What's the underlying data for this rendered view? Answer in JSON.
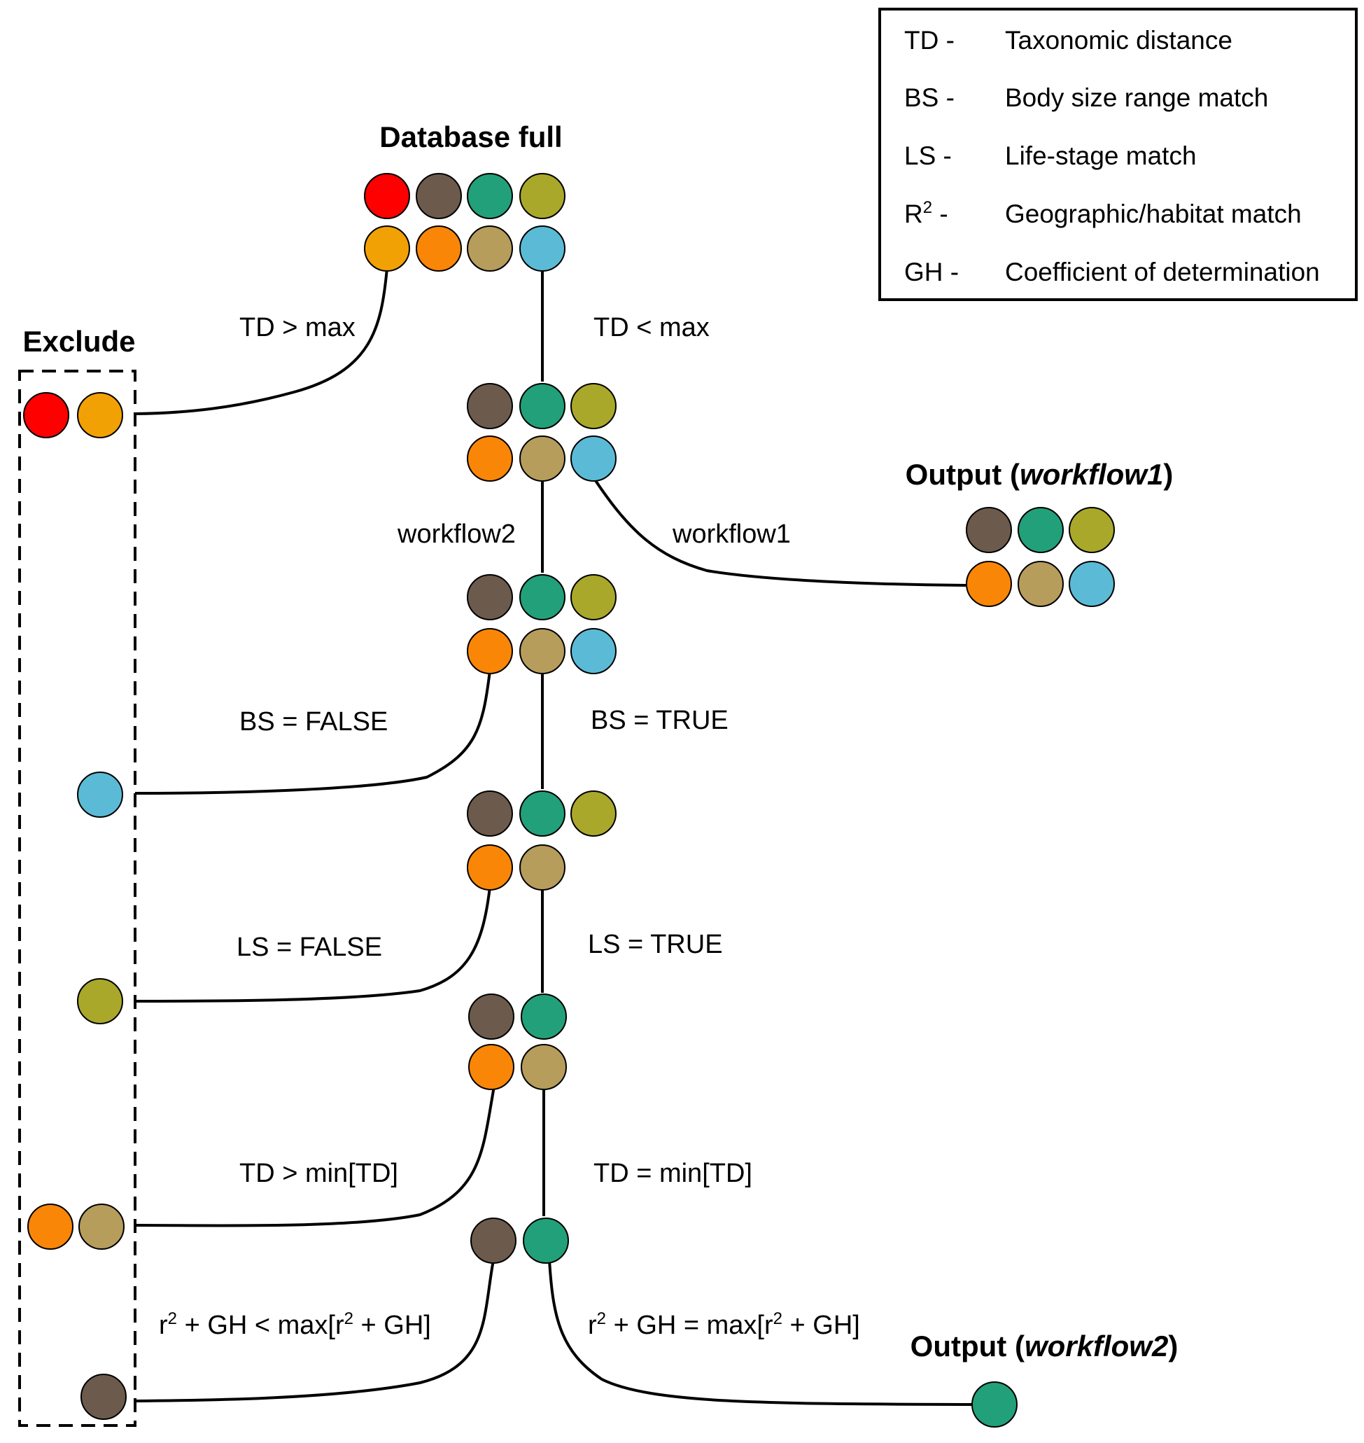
{
  "colors": {
    "red": "#fe0000",
    "brown": "#6c5b4c",
    "teal": "#22a07a",
    "olive": "#aaa82a",
    "yellow_orange": "#f2a104",
    "orange": "#fa8607",
    "tan": "#b79d5b",
    "light_blue": "#5bbbd6",
    "stroke": "#000000"
  },
  "headers": {
    "database_full": "Database full",
    "exclude": "Exclude",
    "output1_prefix": "Output (",
    "output1_italic": "workflow1",
    "output1_suffix": ")",
    "output2_prefix": "Output (",
    "output2_italic": "workflow2",
    "output2_suffix": ")"
  },
  "edge_labels": {
    "td_gt_max": "TD > max",
    "td_lt_max": "TD < max",
    "workflow2": "workflow2",
    "workflow1": "workflow1",
    "bs_false": "BS = FALSE",
    "bs_true": "BS = TRUE",
    "ls_false": "LS = FALSE",
    "ls_true": "LS = TRUE",
    "td_gt_min": "TD > min[TD]",
    "td_eq_min": "TD = min[TD]",
    "r2gh_lt": {
      "a": "r",
      "sup": "2",
      "b": " + GH < max[r",
      "sup2": "2",
      "c": " + GH]"
    },
    "r2gh_eq": {
      "a": "r",
      "sup": "2",
      "b": " + GH = max[r",
      "sup2": "2",
      "c": " + GH]"
    }
  },
  "legend": [
    {
      "abbr": "TD -",
      "desc": "Taxonomic distance"
    },
    {
      "abbr": "BS -",
      "desc": "Body size range match"
    },
    {
      "abbr": "LS -",
      "desc": "Life-stage match"
    },
    {
      "abbr_main": "R",
      "abbr_sup": "2",
      "abbr_suffix": " -",
      "desc": "Geographic/habitat match"
    },
    {
      "abbr": "GH -",
      "desc": "Coefficient of determination"
    }
  ]
}
